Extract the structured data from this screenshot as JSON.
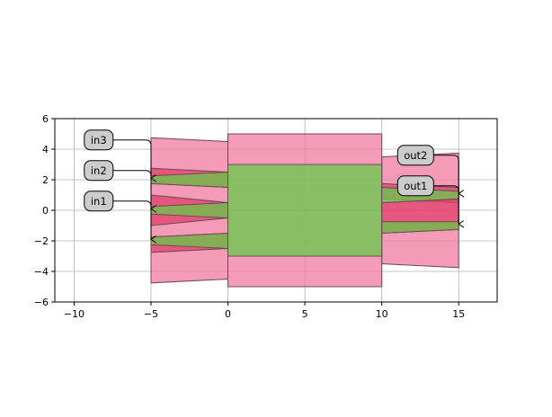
{
  "colors": {
    "cladding": "#f07aa0",
    "core": "#66c94a",
    "taper_dark": "#e0406a",
    "outline": "#6b4a55",
    "grid": "#b0b0b0",
    "label_box": "#cccccc"
  },
  "chart_data": {
    "type": "layout_plot",
    "xlim": [
      -11.25,
      17.5
    ],
    "ylim": [
      -6,
      6
    ],
    "x_ticks": [
      -10,
      -5,
      0,
      5,
      10,
      15
    ],
    "x_tick_labels": [
      "−10",
      "−5",
      "0",
      "5",
      "10",
      "15"
    ],
    "y_ticks": [
      -6,
      -4,
      -2,
      0,
      2,
      4,
      6
    ],
    "y_tick_labels": [
      "−6",
      "−4",
      "−2",
      "0",
      "2",
      "4",
      "6"
    ],
    "grid": true,
    "polygons": [
      {
        "name": "left-cladding",
        "color": "cladding",
        "points": [
          [
            -5,
            4.75
          ],
          [
            0,
            4.5
          ],
          [
            0,
            -4.5
          ],
          [
            -5,
            -4.75
          ]
        ]
      },
      {
        "name": "center-cladding",
        "color": "cladding",
        "points": [
          [
            0,
            5
          ],
          [
            10,
            5
          ],
          [
            10,
            -5
          ],
          [
            0,
            -5
          ]
        ]
      },
      {
        "name": "right-cladding",
        "color": "cladding",
        "points": [
          [
            10,
            3.5
          ],
          [
            15,
            3.75
          ],
          [
            15,
            -3.75
          ],
          [
            10,
            -3.5
          ]
        ]
      },
      {
        "name": "left-taper-dark-1",
        "color": "taper_dark",
        "points": [
          [
            -5,
            2.75
          ],
          [
            0,
            2.5
          ],
          [
            0,
            1.5
          ],
          [
            -5,
            1.75
          ]
        ]
      },
      {
        "name": "left-taper-dark-2",
        "color": "taper_dark",
        "points": [
          [
            -5,
            1.0
          ],
          [
            0,
            0.5
          ],
          [
            0,
            -0.5
          ],
          [
            -5,
            -1.0
          ]
        ]
      },
      {
        "name": "left-taper-dark-3",
        "color": "taper_dark",
        "points": [
          [
            -5,
            -1.75
          ],
          [
            0,
            -1.5
          ],
          [
            0,
            -2.5
          ],
          [
            -5,
            -2.75
          ]
        ]
      },
      {
        "name": "left-core-in3",
        "color": "core",
        "points": [
          [
            -5,
            2.25
          ],
          [
            0,
            2.5
          ],
          [
            0,
            1.5
          ],
          [
            -5,
            1.75
          ]
        ]
      },
      {
        "name": "left-core-in2",
        "color": "core",
        "points": [
          [
            -5,
            0.25
          ],
          [
            0,
            0.5
          ],
          [
            0,
            -0.5
          ],
          [
            -5,
            -0.25
          ]
        ]
      },
      {
        "name": "left-core-in1",
        "color": "core",
        "points": [
          [
            -5,
            -1.75
          ],
          [
            0,
            -1.5
          ],
          [
            0,
            -2.5
          ],
          [
            -5,
            -2.25
          ]
        ]
      },
      {
        "name": "center-core",
        "color": "core",
        "points": [
          [
            0,
            3
          ],
          [
            10,
            3
          ],
          [
            10,
            -3
          ],
          [
            0,
            -3
          ]
        ]
      },
      {
        "name": "right-taper-dark-1",
        "color": "taper_dark",
        "points": [
          [
            10,
            1.75
          ],
          [
            15,
            1.5
          ],
          [
            15,
            0.5
          ],
          [
            10,
            0.75
          ]
        ]
      },
      {
        "name": "right-taper-dark-2",
        "color": "taper_dark",
        "points": [
          [
            10,
            0.5
          ],
          [
            15,
            0.75
          ],
          [
            15,
            -1.25
          ],
          [
            10,
            -1.5
          ]
        ]
      },
      {
        "name": "right-core-out2",
        "color": "core",
        "points": [
          [
            10,
            1.5
          ],
          [
            15,
            1.25
          ],
          [
            15,
            0.75
          ],
          [
            10,
            0.5
          ]
        ]
      },
      {
        "name": "right-core-out1",
        "color": "core",
        "points": [
          [
            10,
            -0.75
          ],
          [
            15,
            -0.75
          ],
          [
            15,
            -1.25
          ],
          [
            10,
            -1.5
          ]
        ]
      }
    ],
    "ports": [
      {
        "label": "in3",
        "text_x": -8.4,
        "text_y": 4.6,
        "corner_x": -5,
        "arrow_y": 2.1
      },
      {
        "label": "in2",
        "text_x": -8.4,
        "text_y": 2.6,
        "corner_x": -5,
        "arrow_y": 0.1
      },
      {
        "label": "in1",
        "text_x": -8.4,
        "text_y": 0.6,
        "corner_x": -5,
        "arrow_y": -1.9
      },
      {
        "label": "out2",
        "text_x": 12.2,
        "text_y": 3.6,
        "corner_x": 15,
        "arrow_y": 1.1
      },
      {
        "label": "out1",
        "text_x": 12.2,
        "text_y": 1.6,
        "corner_x": 15,
        "arrow_y": -0.9
      }
    ]
  }
}
